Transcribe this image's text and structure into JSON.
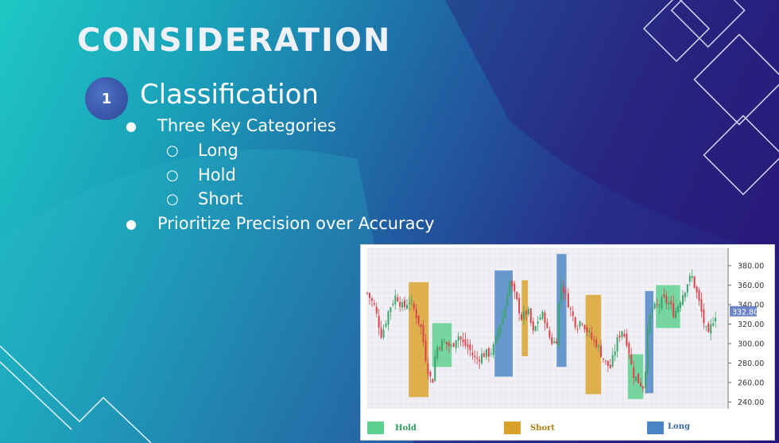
{
  "slide": {
    "title": "CONSIDERATION",
    "number": "1",
    "heading": "Classification",
    "bullets": [
      "Three Key Categories",
      "Long",
      "Hold",
      "Short",
      "Prioritize Precision over Accuracy"
    ]
  },
  "colors": {
    "hold": "#5cd08e",
    "short": "#d9a12a",
    "long": "#4a84c6",
    "price_tag": "#6c86c8"
  },
  "chart_data": {
    "type": "candlestick",
    "y_ticks": [
      "380.00",
      "360.00",
      "340.00",
      "320.00",
      "300.00",
      "280.00",
      "260.00",
      "240.00"
    ],
    "ylim": [
      233,
      398
    ],
    "current_price": "332.80",
    "legend": [
      "Hold",
      "Short",
      "Long"
    ],
    "regions": [
      {
        "label": "Short",
        "start": 0.115,
        "end": 0.17,
        "low": 245,
        "high": 363
      },
      {
        "label": "Hold",
        "start": 0.18,
        "end": 0.234,
        "low": 276,
        "high": 321
      },
      {
        "label": "Long",
        "start": 0.353,
        "end": 0.403,
        "low": 266,
        "high": 375
      },
      {
        "label": "Short",
        "start": 0.428,
        "end": 0.445,
        "low": 287,
        "high": 365
      },
      {
        "label": "Long",
        "start": 0.525,
        "end": 0.552,
        "low": 276,
        "high": 392
      },
      {
        "label": "Short",
        "start": 0.605,
        "end": 0.648,
        "low": 248,
        "high": 350
      },
      {
        "label": "Hold",
        "start": 0.722,
        "end": 0.765,
        "low": 243,
        "high": 289
      },
      {
        "label": "Long",
        "start": 0.77,
        "end": 0.793,
        "low": 249,
        "high": 354
      },
      {
        "label": "Hold",
        "start": 0.8,
        "end": 0.867,
        "low": 316,
        "high": 360
      }
    ],
    "price_path": [
      [
        0.0,
        352
      ],
      [
        0.02,
        338
      ],
      [
        0.04,
        308
      ],
      [
        0.06,
        335
      ],
      [
        0.08,
        350
      ],
      [
        0.1,
        336
      ],
      [
        0.115,
        345
      ],
      [
        0.13,
        335
      ],
      [
        0.15,
        315
      ],
      [
        0.165,
        278
      ],
      [
        0.18,
        258
      ],
      [
        0.19,
        295
      ],
      [
        0.21,
        302
      ],
      [
        0.234,
        296
      ],
      [
        0.25,
        310
      ],
      [
        0.265,
        300
      ],
      [
        0.28,
        296
      ],
      [
        0.3,
        283
      ],
      [
        0.32,
        289
      ],
      [
        0.34,
        290
      ],
      [
        0.353,
        298
      ],
      [
        0.365,
        318
      ],
      [
        0.38,
        332
      ],
      [
        0.393,
        366
      ],
      [
        0.403,
        355
      ],
      [
        0.415,
        342
      ],
      [
        0.428,
        326
      ],
      [
        0.445,
        334
      ],
      [
        0.46,
        310
      ],
      [
        0.475,
        326
      ],
      [
        0.49,
        330
      ],
      [
        0.5,
        310
      ],
      [
        0.515,
        300
      ],
      [
        0.525,
        305
      ],
      [
        0.535,
        364
      ],
      [
        0.552,
        348
      ],
      [
        0.565,
        332
      ],
      [
        0.58,
        318
      ],
      [
        0.595,
        325
      ],
      [
        0.605,
        316
      ],
      [
        0.62,
        306
      ],
      [
        0.635,
        300
      ],
      [
        0.648,
        290
      ],
      [
        0.66,
        280
      ],
      [
        0.675,
        275
      ],
      [
        0.69,
        300
      ],
      [
        0.705,
        315
      ],
      [
        0.722,
        300
      ],
      [
        0.735,
        270
      ],
      [
        0.75,
        262
      ],
      [
        0.765,
        256
      ],
      [
        0.77,
        272
      ],
      [
        0.78,
        325
      ],
      [
        0.793,
        336
      ],
      [
        0.805,
        338
      ],
      [
        0.82,
        345
      ],
      [
        0.835,
        342
      ],
      [
        0.85,
        330
      ],
      [
        0.867,
        345
      ],
      [
        0.88,
        356
      ],
      [
        0.89,
        365
      ],
      [
        0.9,
        368
      ],
      [
        0.91,
        356
      ],
      [
        0.925,
        334
      ],
      [
        0.935,
        318
      ],
      [
        0.945,
        306
      ],
      [
        0.955,
        322
      ],
      [
        0.965,
        330
      ]
    ]
  }
}
